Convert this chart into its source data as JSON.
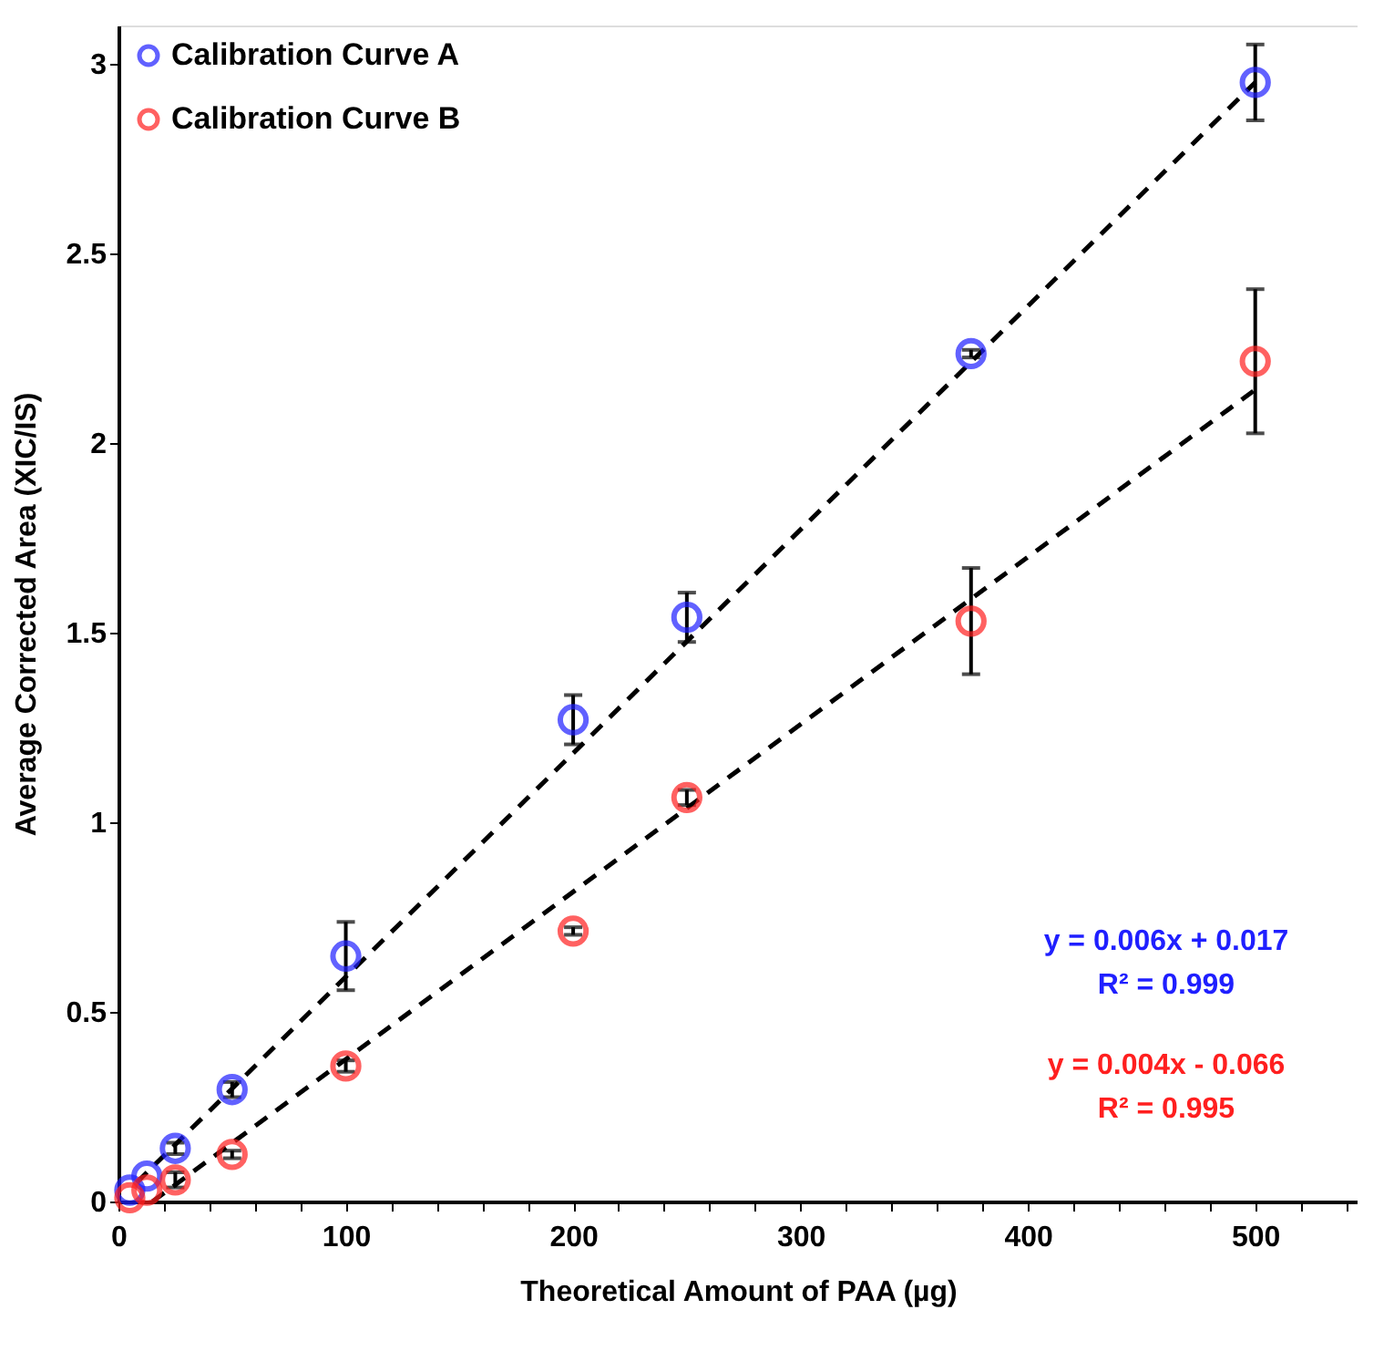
{
  "chart_data": {
    "type": "scatter",
    "xlabel": "Theoretical Amount of PAA (µg)",
    "ylabel": "Average Corrected Area (XIC/IS)",
    "xlim": [
      0,
      545
    ],
    "ylim": [
      0,
      3.1
    ],
    "xticks": [
      0,
      {
        "value": 20,
        "label": null
      },
      {
        "value": 40,
        "label": null
      },
      {
        "value": 60,
        "label": null
      },
      {
        "value": 80,
        "label": null
      },
      100,
      {
        "value": 120,
        "label": null
      },
      {
        "value": 140,
        "label": null
      },
      {
        "value": 160,
        "label": null
      },
      {
        "value": 180,
        "label": null
      },
      200,
      {
        "value": 220,
        "label": null
      },
      {
        "value": 240,
        "label": null
      },
      {
        "value": 260,
        "label": null
      },
      {
        "value": 280,
        "label": null
      },
      300,
      {
        "value": 320,
        "label": null
      },
      {
        "value": 340,
        "label": null
      },
      {
        "value": 360,
        "label": null
      },
      {
        "value": 380,
        "label": null
      },
      400,
      {
        "value": 420,
        "label": null
      },
      {
        "value": 440,
        "label": null
      },
      {
        "value": 460,
        "label": null
      },
      {
        "value": 480,
        "label": null
      },
      500,
      {
        "value": 520,
        "label": null
      },
      {
        "value": 540,
        "label": null
      }
    ],
    "yticks": [
      0,
      0.5,
      1,
      1.5,
      2,
      2.5,
      3
    ],
    "marker": "circle",
    "legend": "top left",
    "grid": false,
    "series": [
      {
        "name": "Calibration Curve A",
        "color": "#1f1fff",
        "x": [
          5,
          12.5,
          25,
          50,
          100,
          200,
          250,
          375,
          500
        ],
        "values": [
          0.03,
          0.067,
          0.14,
          0.295,
          0.647,
          1.27,
          1.54,
          2.235,
          2.95
        ],
        "errors": [
          null,
          null,
          0.015,
          0.02,
          0.09,
          0.065,
          0.065,
          0.01,
          0.1
        ]
      },
      {
        "name": "Calibration Curve B",
        "color": "#ff1f1f",
        "x": [
          5,
          12.5,
          25,
          50,
          100,
          200,
          250,
          375,
          500
        ],
        "values": [
          0.01,
          0.03,
          0.057,
          0.124,
          0.357,
          0.713,
          1.065,
          1.53,
          2.215
        ],
        "errors": [
          null,
          null,
          0.02,
          0.01,
          0.015,
          0.01,
          0.02,
          0.14,
          0.19
        ]
      },
      {
        "type": "line",
        "color": "#000000",
        "line_style": "dashed",
        "marker": "none",
        "x": [
          8,
          500
        ],
        "values": [
          0.05,
          2.95
        ]
      },
      {
        "type": "line",
        "color": "#000000",
        "line_style": "dashed",
        "marker": "none",
        "x": [
          15,
          500
        ],
        "values": [
          0.0,
          2.14
        ]
      }
    ],
    "annotations": [
      "y = 0.006x + 0.017",
      "R² = 0.999",
      "y = 0.004x - 0.066",
      "R² = 0.995"
    ]
  }
}
